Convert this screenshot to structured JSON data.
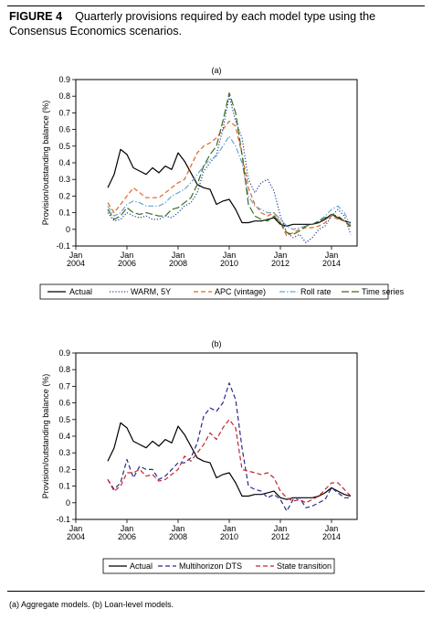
{
  "figure": {
    "number": "FIGURE 4",
    "caption": "Quarterly provisions required by each model type using the Consensus Economics scenarios.",
    "footnote": "(a) Aggregate models. (b) Loan-level models."
  },
  "chart_data": [
    {
      "type": "line",
      "panel_label": "(a)",
      "ylabel": "Provision/outstanding balance (%)",
      "xlabel": "",
      "ylim": [
        -0.1,
        0.9
      ],
      "yticks": [
        "-0.1",
        "0",
        "0.1",
        "0.2",
        "0.3",
        "0.4",
        "0.5",
        "0.6",
        "0.7",
        "0.8",
        "0.9"
      ],
      "xlim": [
        2004,
        2015
      ],
      "xticks": [
        {
          "x": 2004,
          "line1": "Jan",
          "line2": "2004"
        },
        {
          "x": 2006,
          "line1": "Jan",
          "line2": "2006"
        },
        {
          "x": 2008,
          "line1": "Jan",
          "line2": "2008"
        },
        {
          "x": 2010,
          "line1": "Jan",
          "line2": "2010"
        },
        {
          "x": 2012,
          "line1": "Jan",
          "line2": "2012"
        },
        {
          "x": 2014,
          "line1": "Jan",
          "line2": "2014"
        }
      ],
      "grid": false,
      "legend_position": "bottom",
      "series": [
        {
          "name": "Actual",
          "color": "#000000",
          "dash": "solid",
          "x": [
            2005.25,
            2005.5,
            2005.75,
            2006,
            2006.25,
            2006.5,
            2006.75,
            2007,
            2007.25,
            2007.5,
            2007.75,
            2008,
            2008.25,
            2008.5,
            2008.75,
            2009,
            2009.25,
            2009.5,
            2009.75,
            2010,
            2010.25,
            2010.5,
            2010.75,
            2011,
            2011.25,
            2011.5,
            2011.75,
            2012,
            2012.25,
            2012.5,
            2012.75,
            2013,
            2013.25,
            2013.5,
            2013.75,
            2014,
            2014.25,
            2014.5,
            2014.75
          ],
          "y": [
            0.25,
            0.33,
            0.48,
            0.45,
            0.37,
            0.35,
            0.33,
            0.37,
            0.34,
            0.38,
            0.36,
            0.46,
            0.41,
            0.34,
            0.27,
            0.25,
            0.24,
            0.15,
            0.17,
            0.18,
            0.12,
            0.04,
            0.04,
            0.05,
            0.05,
            0.06,
            0.07,
            0.03,
            0.02,
            0.03,
            0.03,
            0.03,
            0.03,
            0.04,
            0.06,
            0.09,
            0.07,
            0.05,
            0.04
          ]
        },
        {
          "name": "WARM, 5Y",
          "color": "#1f3f9f",
          "dash": "dot",
          "x": [
            2005.25,
            2005.5,
            2005.75,
            2006,
            2006.25,
            2006.5,
            2006.75,
            2007,
            2007.25,
            2007.5,
            2007.75,
            2008,
            2008.25,
            2008.5,
            2008.75,
            2009,
            2009.25,
            2009.5,
            2009.75,
            2010,
            2010.25,
            2010.5,
            2010.75,
            2011,
            2011.25,
            2011.5,
            2011.75,
            2012,
            2012.25,
            2012.5,
            2012.75,
            2013,
            2013.25,
            2013.5,
            2013.75,
            2014,
            2014.25,
            2014.5,
            2014.75
          ],
          "y": [
            0.1,
            0.05,
            0.06,
            0.1,
            0.08,
            0.07,
            0.08,
            0.06,
            0.06,
            0.08,
            0.07,
            0.1,
            0.14,
            0.16,
            0.22,
            0.35,
            0.4,
            0.45,
            0.6,
            0.8,
            0.65,
            0.55,
            0.3,
            0.22,
            0.28,
            0.3,
            0.23,
            0.08,
            -0.02,
            -0.05,
            -0.03,
            -0.08,
            -0.05,
            0.0,
            0.02,
            0.08,
            0.12,
            0.08,
            -0.03
          ]
        },
        {
          "name": "APC (vintage)",
          "color": "#e2641c",
          "dash": "dash",
          "x": [
            2005.25,
            2005.5,
            2005.75,
            2006,
            2006.25,
            2006.5,
            2006.75,
            2007,
            2007.25,
            2007.5,
            2007.75,
            2008,
            2008.25,
            2008.5,
            2008.75,
            2009,
            2009.25,
            2009.5,
            2009.75,
            2010,
            2010.25,
            2010.5,
            2010.75,
            2011,
            2011.25,
            2011.5,
            2011.75,
            2012,
            2012.25,
            2012.5,
            2012.75,
            2013,
            2013.25,
            2013.5,
            2013.75,
            2014,
            2014.25,
            2014.5,
            2014.75
          ],
          "y": [
            0.16,
            0.1,
            0.15,
            0.2,
            0.25,
            0.22,
            0.19,
            0.19,
            0.19,
            0.22,
            0.25,
            0.28,
            0.3,
            0.38,
            0.46,
            0.5,
            0.52,
            0.55,
            0.6,
            0.65,
            0.62,
            0.45,
            0.25,
            0.15,
            0.1,
            0.08,
            0.1,
            0.04,
            -0.04,
            -0.02,
            0.0,
            0.01,
            0.01,
            0.02,
            0.04,
            0.08,
            0.06,
            0.05,
            0.01
          ]
        },
        {
          "name": "Roll rate",
          "color": "#6fa3d0",
          "dash": "dashdot",
          "x": [
            2005.25,
            2005.5,
            2005.75,
            2006,
            2006.25,
            2006.5,
            2006.75,
            2007,
            2007.25,
            2007.5,
            2007.75,
            2008,
            2008.25,
            2008.5,
            2008.75,
            2009,
            2009.25,
            2009.5,
            2009.75,
            2010,
            2010.25,
            2010.5,
            2010.75,
            2011,
            2011.25,
            2011.5,
            2011.75,
            2012,
            2012.25,
            2012.5,
            2012.75,
            2013,
            2013.25,
            2013.5,
            2013.75,
            2014,
            2014.25,
            2014.5,
            2014.75
          ],
          "y": [
            0.14,
            0.08,
            0.1,
            0.15,
            0.17,
            0.16,
            0.14,
            0.14,
            0.14,
            0.16,
            0.2,
            0.22,
            0.24,
            0.28,
            0.33,
            0.38,
            0.42,
            0.44,
            0.5,
            0.56,
            0.5,
            0.4,
            0.2,
            0.14,
            0.12,
            0.1,
            0.1,
            0.06,
            0.02,
            0.0,
            0.01,
            0.02,
            0.03,
            0.05,
            0.08,
            0.12,
            0.14,
            0.1,
            0.02
          ]
        },
        {
          "name": "Time series",
          "color": "#3c6b1f",
          "dash": "longdash",
          "x": [
            2005.25,
            2005.5,
            2005.75,
            2006,
            2006.25,
            2006.5,
            2006.75,
            2007,
            2007.25,
            2007.5,
            2007.75,
            2008,
            2008.25,
            2008.5,
            2008.75,
            2009,
            2009.25,
            2009.5,
            2009.75,
            2010,
            2010.25,
            2010.5,
            2010.75,
            2011,
            2011.25,
            2011.5,
            2011.75,
            2012,
            2012.25,
            2012.5,
            2012.75,
            2013,
            2013.25,
            2013.5,
            2013.75,
            2014,
            2014.25,
            2014.5,
            2014.75
          ],
          "y": [
            0.12,
            0.06,
            0.08,
            0.13,
            0.1,
            0.09,
            0.1,
            0.09,
            0.08,
            0.08,
            0.12,
            0.13,
            0.16,
            0.19,
            0.27,
            0.38,
            0.45,
            0.5,
            0.65,
            0.82,
            0.7,
            0.45,
            0.15,
            0.08,
            0.06,
            0.05,
            0.08,
            0.04,
            -0.02,
            -0.03,
            -0.01,
            0.02,
            0.03,
            0.05,
            0.07,
            0.09,
            0.08,
            0.05,
            0.02
          ]
        }
      ]
    },
    {
      "type": "line",
      "panel_label": "(b)",
      "ylabel": "Provision/outstanding balance (%)",
      "xlabel": "",
      "ylim": [
        -0.1,
        0.9
      ],
      "yticks": [
        "-0.1",
        "0",
        "0.1",
        "0.2",
        "0.3",
        "0.4",
        "0.5",
        "0.6",
        "0.7",
        "0.8",
        "0.9"
      ],
      "xlim": [
        2004,
        2015
      ],
      "xticks": [
        {
          "x": 2004,
          "line1": "Jan",
          "line2": "2004"
        },
        {
          "x": 2006,
          "line1": "Jan",
          "line2": "2006"
        },
        {
          "x": 2008,
          "line1": "Jan",
          "line2": "2008"
        },
        {
          "x": 2010,
          "line1": "Jan",
          "line2": "2010"
        },
        {
          "x": 2012,
          "line1": "Jan",
          "line2": "2012"
        },
        {
          "x": 2014,
          "line1": "Jan",
          "line2": "2014"
        }
      ],
      "grid": false,
      "legend_position": "bottom",
      "series": [
        {
          "name": "Actual",
          "color": "#000000",
          "dash": "solid",
          "x": [
            2005.25,
            2005.5,
            2005.75,
            2006,
            2006.25,
            2006.5,
            2006.75,
            2007,
            2007.25,
            2007.5,
            2007.75,
            2008,
            2008.25,
            2008.5,
            2008.75,
            2009,
            2009.25,
            2009.5,
            2009.75,
            2010,
            2010.25,
            2010.5,
            2010.75,
            2011,
            2011.25,
            2011.5,
            2011.75,
            2012,
            2012.25,
            2012.5,
            2012.75,
            2013,
            2013.25,
            2013.5,
            2013.75,
            2014,
            2014.25,
            2014.5,
            2014.75
          ],
          "y": [
            0.25,
            0.33,
            0.48,
            0.45,
            0.37,
            0.35,
            0.33,
            0.37,
            0.34,
            0.38,
            0.36,
            0.46,
            0.41,
            0.34,
            0.27,
            0.25,
            0.24,
            0.15,
            0.17,
            0.18,
            0.12,
            0.04,
            0.04,
            0.05,
            0.05,
            0.06,
            0.07,
            0.03,
            0.02,
            0.03,
            0.03,
            0.03,
            0.03,
            0.04,
            0.06,
            0.09,
            0.07,
            0.05,
            0.04
          ]
        },
        {
          "name": "Multihorizon DTS",
          "color": "#2a2a8a",
          "dash": "dash",
          "x": [
            2005.25,
            2005.5,
            2005.75,
            2006,
            2006.25,
            2006.5,
            2006.75,
            2007,
            2007.25,
            2007.5,
            2007.75,
            2008,
            2008.25,
            2008.5,
            2008.75,
            2009,
            2009.25,
            2009.5,
            2009.75,
            2010,
            2010.25,
            2010.5,
            2010.75,
            2011,
            2011.25,
            2011.5,
            2011.75,
            2012,
            2012.25,
            2012.5,
            2012.75,
            2013,
            2013.25,
            2013.5,
            2013.75,
            2014,
            2014.25,
            2014.5,
            2014.75
          ],
          "y": [
            0.14,
            0.08,
            0.12,
            0.26,
            0.15,
            0.22,
            0.2,
            0.2,
            0.14,
            0.16,
            0.2,
            0.24,
            0.24,
            0.27,
            0.36,
            0.52,
            0.57,
            0.55,
            0.6,
            0.72,
            0.62,
            0.33,
            0.1,
            0.08,
            0.07,
            0.03,
            0.05,
            0.02,
            -0.05,
            0.02,
            0.03,
            -0.03,
            -0.02,
            0.0,
            0.02,
            0.09,
            0.06,
            0.03,
            0.03
          ]
        },
        {
          "name": "State transition",
          "color": "#c4262e",
          "dash": "dash",
          "x": [
            2005.25,
            2005.5,
            2005.75,
            2006,
            2006.25,
            2006.5,
            2006.75,
            2007,
            2007.25,
            2007.5,
            2007.75,
            2008,
            2008.25,
            2008.5,
            2008.75,
            2009,
            2009.25,
            2009.5,
            2009.75,
            2010,
            2010.25,
            2010.5,
            2010.75,
            2011,
            2011.25,
            2011.5,
            2011.75,
            2012,
            2012.25,
            2012.5,
            2012.75,
            2013,
            2013.25,
            2013.5,
            2013.75,
            2014,
            2014.25,
            2014.5,
            2014.75
          ],
          "y": [
            0.14,
            0.07,
            0.1,
            0.18,
            0.18,
            0.2,
            0.16,
            0.17,
            0.13,
            0.14,
            0.17,
            0.2,
            0.28,
            0.25,
            0.3,
            0.35,
            0.42,
            0.38,
            0.45,
            0.5,
            0.45,
            0.2,
            0.19,
            0.18,
            0.17,
            0.18,
            0.15,
            0.07,
            0.03,
            0.01,
            0.02,
            0.0,
            0.02,
            0.04,
            0.08,
            0.12,
            0.12,
            0.08,
            0.04
          ]
        }
      ]
    }
  ]
}
